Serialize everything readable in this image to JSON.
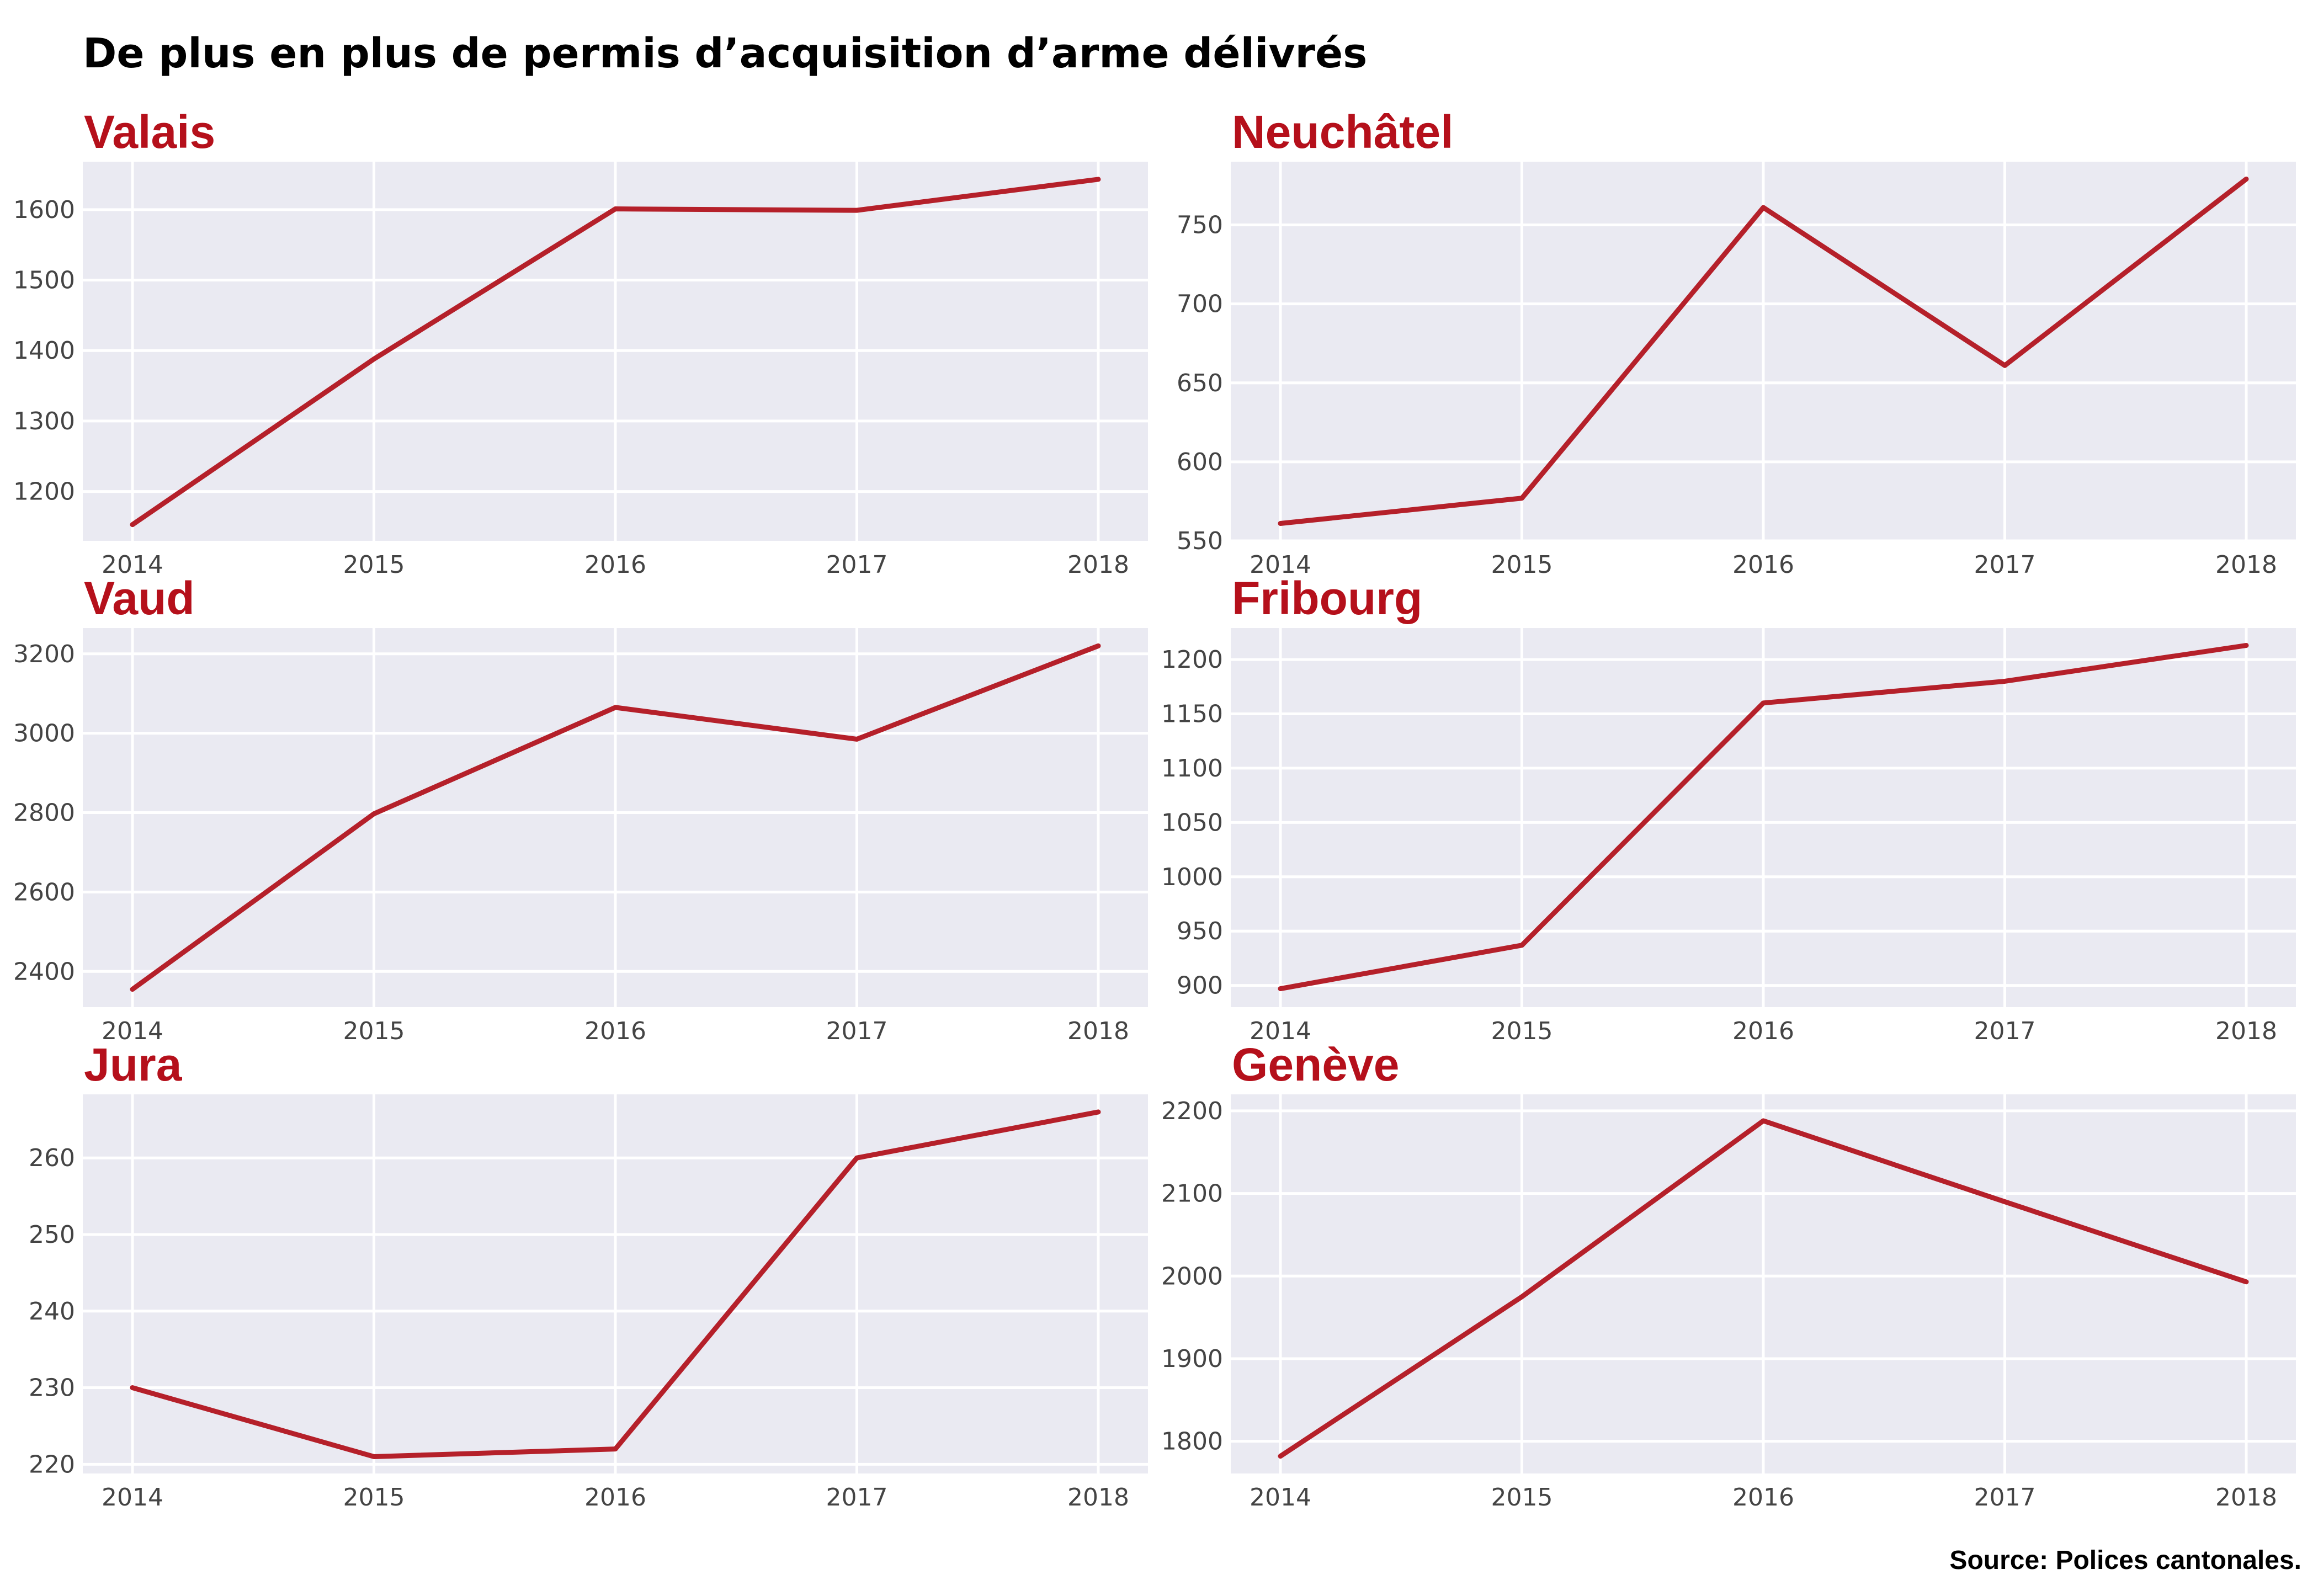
{
  "title": "De plus en plus de permis d’acquisition d’arme délivrés",
  "source": "Source: Polices cantonales.",
  "colors": {
    "line": "#b5202a",
    "panel_title": "#b5101b",
    "panel_bg": "#eaeaf2",
    "grid": "#ffffff"
  },
  "chart_data": [
    {
      "type": "line",
      "title": "Valais",
      "x": [
        2014,
        2015,
        2016,
        2017,
        2018
      ],
      "values": [
        1153,
        1388,
        1601,
        1599,
        1643
      ],
      "xticks": [
        "2014",
        "2015",
        "2016",
        "2017",
        "2018"
      ],
      "yticks": [
        1200,
        1300,
        1400,
        1500,
        1600
      ],
      "ylim": [
        1130,
        1668
      ],
      "grid": true
    },
    {
      "type": "line",
      "title": "Neuchâtel",
      "x": [
        2014,
        2015,
        2016,
        2017,
        2018
      ],
      "values": [
        561,
        577,
        761,
        661,
        779
      ],
      "xticks": [
        "2014",
        "2015",
        "2016",
        "2017",
        "2018"
      ],
      "yticks": [
        550,
        600,
        650,
        700,
        750
      ],
      "ylim": [
        550,
        790
      ],
      "grid": true
    },
    {
      "type": "line",
      "title": "Vaud",
      "x": [
        2014,
        2015,
        2016,
        2017,
        2018
      ],
      "values": [
        2355,
        2797,
        3065,
        2985,
        3220
      ],
      "xticks": [
        "2014",
        "2015",
        "2016",
        "2017",
        "2018"
      ],
      "yticks": [
        2400,
        2600,
        2800,
        3000,
        3200
      ],
      "ylim": [
        2310,
        3265
      ],
      "grid": true
    },
    {
      "type": "line",
      "title": "Fribourg",
      "x": [
        2014,
        2015,
        2016,
        2017,
        2018
      ],
      "values": [
        897,
        937,
        1160,
        1180,
        1213
      ],
      "xticks": [
        "2014",
        "2015",
        "2016",
        "2017",
        "2018"
      ],
      "yticks": [
        900,
        950,
        1000,
        1050,
        1100,
        1150,
        1200
      ],
      "ylim": [
        880,
        1229
      ],
      "grid": true
    },
    {
      "type": "line",
      "title": "Jura",
      "x": [
        2014,
        2015,
        2016,
        2017,
        2018
      ],
      "values": [
        230,
        221,
        222,
        260,
        266
      ],
      "xticks": [
        "2014",
        "2015",
        "2016",
        "2017",
        "2018"
      ],
      "yticks": [
        220,
        230,
        240,
        250,
        260
      ],
      "ylim": [
        218.8,
        268.3
      ],
      "grid": true
    },
    {
      "type": "line",
      "title": "Genève",
      "x": [
        2014,
        2015,
        2016,
        2017,
        2018
      ],
      "values": [
        1782,
        1975,
        2188,
        2090,
        1993
      ],
      "xticks": [
        "2014",
        "2015",
        "2016",
        "2017",
        "2018"
      ],
      "yticks": [
        1800,
        1900,
        2000,
        2100,
        2200
      ],
      "ylim": [
        1761,
        2220
      ],
      "grid": true
    }
  ]
}
